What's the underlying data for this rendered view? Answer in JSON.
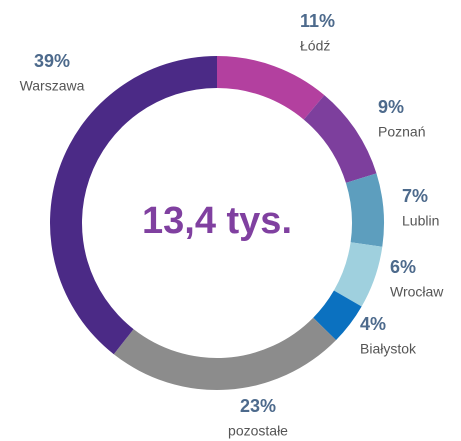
{
  "chart_data": {
    "type": "donut",
    "center_label": "13,4 tys.",
    "categories": [
      "Łódź",
      "Poznań",
      "Lublin",
      "Wrocław",
      "Białystok",
      "pozostałe",
      "Warszawa"
    ],
    "values": [
      11,
      9,
      7,
      6,
      4,
      23,
      39
    ],
    "value_labels": [
      "11%",
      "9%",
      "7%",
      "6%",
      "4%",
      "23%",
      "39%"
    ],
    "colors": [
      "#b3409f",
      "#7d3f9d",
      "#5d9ebe",
      "#9fd0de",
      "#0b71c0",
      "#8c8c8c",
      "#4b2a86"
    ]
  }
}
